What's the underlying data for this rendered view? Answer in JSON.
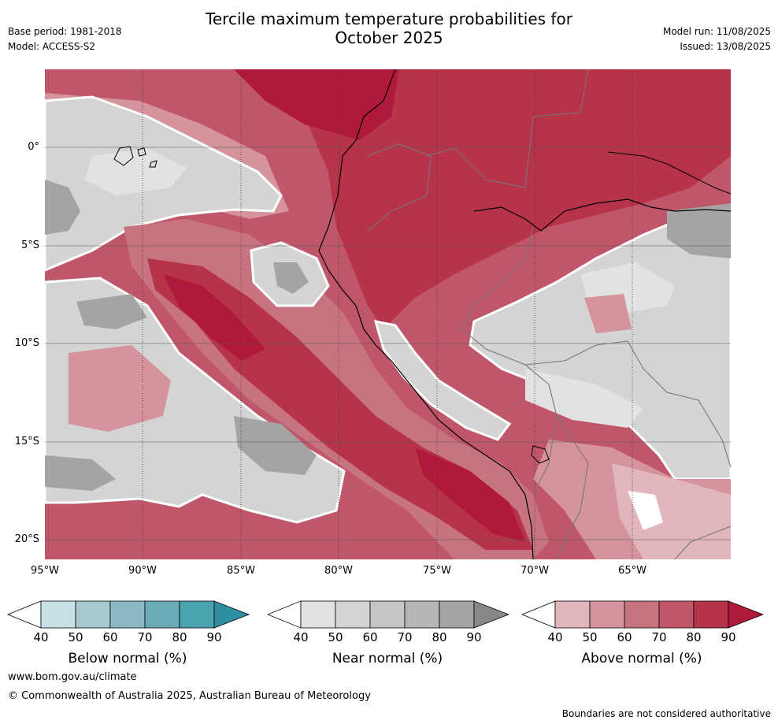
{
  "header": {
    "title_line1": "Tercile maximum temperature probabilities for",
    "title_line2": "October 2025",
    "base_period": "Base period: 1981-2018",
    "model": "Model: ACCESS-S2",
    "model_run": "Model run: 11/08/2025",
    "issued": "Issued: 13/08/2025"
  },
  "map": {
    "lat_labels": [
      "0°",
      "5°S",
      "10°S",
      "15°S",
      "20°S"
    ],
    "lon_labels": [
      "95°W",
      "90°W",
      "85°W",
      "80°W",
      "75°W",
      "70°W",
      "65°W"
    ],
    "extent": {
      "lon_min": -95,
      "lon_max": -60,
      "lat_min": -21,
      "lat_max": 4
    }
  },
  "legends": [
    {
      "title": "Below normal (%)",
      "ticks": [
        "40",
        "50",
        "60",
        "70",
        "80",
        "90"
      ],
      "colors": [
        "#ffffff",
        "#c7e1e6",
        "#a6c9ce",
        "#8ab9c3",
        "#6aabb6",
        "#4aa3b1",
        "#2d8fa0"
      ]
    },
    {
      "title": "Near normal (%)",
      "ticks": [
        "40",
        "50",
        "60",
        "70",
        "80",
        "90"
      ],
      "colors": [
        "#ffffff",
        "#e2e2e2",
        "#d4d4d4",
        "#c5c5c5",
        "#b6b6b6",
        "#a4a4a4",
        "#888888"
      ]
    },
    {
      "title": "Above normal (%)",
      "ticks": [
        "40",
        "50",
        "60",
        "70",
        "80",
        "90"
      ],
      "colors": [
        "#ffffff",
        "#e1b6bb",
        "#d5949c",
        "#c87480",
        "#c0566a",
        "#b73349",
        "#b0193a"
      ]
    }
  ],
  "footer": {
    "url": "www.bom.gov.au/climate",
    "copyright": "© Commonwealth of Australia 2025, Australian Bureau of Meteorology",
    "disclaimer": "Boundaries are not considered authoritative"
  }
}
